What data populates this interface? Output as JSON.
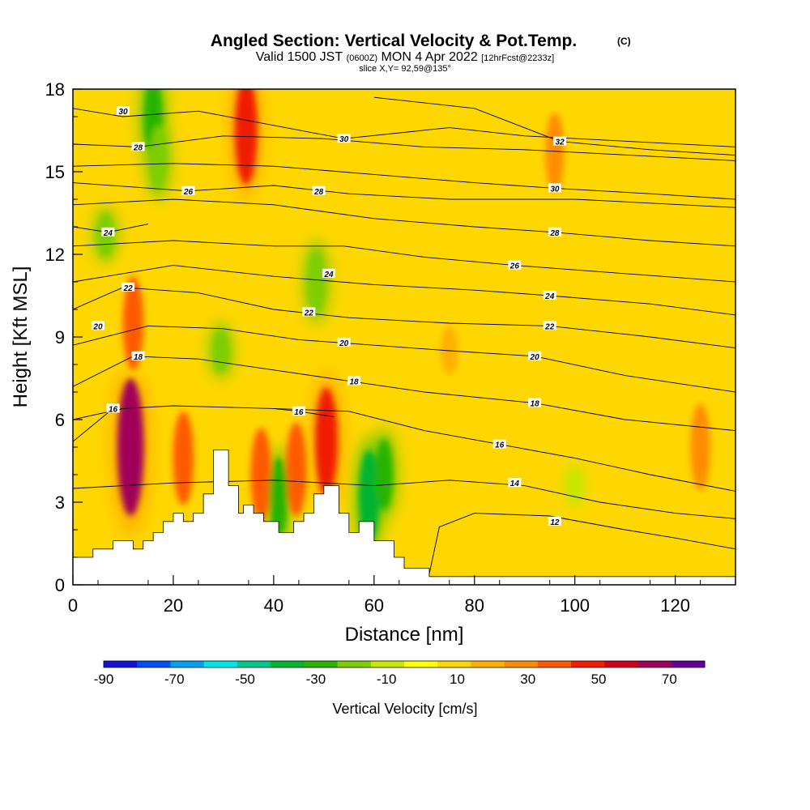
{
  "title": {
    "main": "Angled Section: Vertical Velocity & Pot.Temp.",
    "main_tag": "(C)",
    "valid_a": "Valid 1500 JST",
    "valid_b": "(0600Z)",
    "valid_c": "MON 4 Apr 2022",
    "valid_d": "[12hrFcst@2233z]",
    "slice": "slice X,Y= 92,59@135°"
  },
  "chart_data": {
    "type": "heatmap",
    "subtype": "cross-section: filled contours of vertical velocity with potential temperature contour lines and terrain",
    "xlabel": "Distance [nm]",
    "ylabel": "Height [Kft MSL]",
    "xlim": [
      0,
      132
    ],
    "ylim": [
      0,
      18
    ],
    "xticks": [
      "0",
      "20",
      "40",
      "60",
      "80",
      "100",
      "120"
    ],
    "yticks": [
      "0",
      "3",
      "6",
      "9",
      "12",
      "15",
      "18"
    ],
    "grid": false,
    "colorbar": {
      "label": "Vertical Velocity [cm/s]",
      "min": -90,
      "max": 80,
      "step": 10,
      "tick_labels": [
        "-90",
        "-70",
        "-50",
        "-30",
        "-10",
        "10",
        "30",
        "50",
        "70"
      ],
      "colors": [
        "#1414d2",
        "#0050f0",
        "#00a0f0",
        "#00e6e6",
        "#00c88c",
        "#00b432",
        "#28b400",
        "#7dcd00",
        "#c8e600",
        "#ffff00",
        "#ffd700",
        "#ffaf00",
        "#ff8c00",
        "#ff5a00",
        "#f01e00",
        "#d2001e",
        "#a0005a",
        "#640096"
      ]
    },
    "velocity_features": [
      {
        "x": 11.5,
        "y": 5.0,
        "value": 70
      },
      {
        "x": 12,
        "y": 9.5,
        "value": 40
      },
      {
        "x": 34.5,
        "y": 16.5,
        "value": 50
      },
      {
        "x": 50.5,
        "y": 5.2,
        "value": 50
      },
      {
        "x": 44.5,
        "y": 4.2,
        "value": 40
      },
      {
        "x": 37.5,
        "y": 4.0,
        "value": 40
      },
      {
        "x": 22,
        "y": 4.6,
        "value": 40
      },
      {
        "x": 16,
        "y": 17,
        "value": -30
      },
      {
        "x": 17,
        "y": 15.5,
        "value": -20
      },
      {
        "x": 59,
        "y": 3.2,
        "value": -40
      },
      {
        "x": 62,
        "y": 4.0,
        "value": -25
      },
      {
        "x": 41,
        "y": 3.2,
        "value": -30
      },
      {
        "x": 48.5,
        "y": 11,
        "value": -20
      },
      {
        "x": 6.5,
        "y": 12.7,
        "value": -15
      },
      {
        "x": 29.5,
        "y": 8.5,
        "value": -15
      },
      {
        "x": 118,
        "y": 15.5,
        "value": 15
      },
      {
        "x": 125,
        "y": 5,
        "value": 35
      },
      {
        "x": 96,
        "y": 15.7,
        "value": 30
      },
      {
        "x": 75,
        "y": 8.5,
        "value": 20
      },
      {
        "x": 100,
        "y": 3.6,
        "value": -5
      }
    ],
    "theta_contours": [
      {
        "label": "12",
        "label_pos": [
          96,
          2.3
        ],
        "points": [
          [
            71,
            0.4
          ],
          [
            73,
            2.1
          ],
          [
            80,
            2.6
          ],
          [
            95,
            2.5
          ],
          [
            110,
            2.0
          ],
          [
            120,
            1.7
          ],
          [
            132,
            1.3
          ]
        ]
      },
      {
        "label": "14",
        "label_pos": [
          88,
          3.7
        ],
        "points": [
          [
            0,
            3.5
          ],
          [
            20,
            3.7
          ],
          [
            40,
            3.8
          ],
          [
            60,
            3.6
          ],
          [
            75,
            3.8
          ],
          [
            90,
            3.6
          ],
          [
            105,
            3.0
          ],
          [
            120,
            2.6
          ],
          [
            132,
            2.4
          ]
        ]
      },
      {
        "label": "16",
        "label_pos": [
          85,
          5.1
        ],
        "points": [
          [
            0,
            6.0
          ],
          [
            10,
            6.4
          ],
          [
            20,
            6.5
          ],
          [
            40,
            6.4
          ],
          [
            55,
            6.3
          ],
          [
            70,
            5.6
          ],
          [
            85,
            5.1
          ],
          [
            100,
            4.6
          ],
          [
            115,
            4.0
          ],
          [
            132,
            3.4
          ]
        ]
      },
      {
        "label": "16",
        "label_pos": [
          8,
          6.4
        ],
        "points": [
          [
            0,
            5.2
          ],
          [
            8,
            6.4
          ]
        ]
      },
      {
        "label": "16",
        "label_pos": [
          45,
          6.3
        ],
        "points": [
          [
            40,
            6.4
          ],
          [
            45,
            6.3
          ],
          [
            52,
            6.1
          ]
        ]
      },
      {
        "label": "18",
        "label_pos": [
          92,
          6.6
        ],
        "points": [
          [
            0,
            7.2
          ],
          [
            12,
            8.3
          ],
          [
            25,
            8.2
          ],
          [
            40,
            7.8
          ],
          [
            55,
            7.4
          ],
          [
            70,
            7.0
          ],
          [
            92,
            6.6
          ],
          [
            110,
            6.0
          ],
          [
            132,
            5.6
          ]
        ]
      },
      {
        "label": "18",
        "label_pos": [
          13,
          8.3
        ],
        "points": [
          [
            12,
            8.3
          ],
          [
            13,
            8.3
          ]
        ]
      },
      {
        "label": "18",
        "label_pos": [
          56,
          7.4
        ],
        "points": [
          [
            55,
            7.4
          ],
          [
            56,
            7.4
          ]
        ]
      },
      {
        "label": "20",
        "label_pos": [
          92,
          8.3
        ],
        "points": [
          [
            0,
            8.7
          ],
          [
            15,
            9.4
          ],
          [
            30,
            9.3
          ],
          [
            45,
            8.9
          ],
          [
            60,
            8.7
          ],
          [
            75,
            8.5
          ],
          [
            92,
            8.3
          ],
          [
            110,
            7.6
          ],
          [
            132,
            7.0
          ]
        ]
      },
      {
        "label": "20",
        "label_pos": [
          54,
          8.8
        ],
        "points": [
          [
            54,
            8.8
          ],
          [
            55,
            8.8
          ]
        ]
      },
      {
        "label": "20",
        "label_pos": [
          5,
          9.4
        ],
        "points": [
          [
            4,
            9.4
          ],
          [
            5,
            9.4
          ]
        ]
      },
      {
        "label": "22",
        "label_pos": [
          95,
          9.4
        ],
        "points": [
          [
            0,
            10.0
          ],
          [
            10,
            10.8
          ],
          [
            25,
            10.6
          ],
          [
            40,
            10.0
          ],
          [
            55,
            9.7
          ],
          [
            75,
            9.5
          ],
          [
            95,
            9.4
          ],
          [
            115,
            9.0
          ],
          [
            132,
            8.6
          ]
        ]
      },
      {
        "label": "22",
        "label_pos": [
          47,
          9.9
        ],
        "points": [
          [
            46,
            9.9
          ],
          [
            47,
            9.9
          ]
        ]
      },
      {
        "label": "22",
        "label_pos": [
          11,
          10.8
        ],
        "points": [
          [
            10,
            10.8
          ],
          [
            11,
            10.8
          ]
        ]
      },
      {
        "label": "24",
        "label_pos": [
          95,
          10.5
        ],
        "points": [
          [
            0,
            11.0
          ],
          [
            20,
            11.6
          ],
          [
            40,
            11.2
          ],
          [
            60,
            10.9
          ],
          [
            80,
            10.7
          ],
          [
            95,
            10.5
          ],
          [
            115,
            10.2
          ],
          [
            132,
            9.8
          ]
        ]
      },
      {
        "label": "24",
        "label_pos": [
          51,
          11.3
        ],
        "points": [
          [
            50,
            11.3
          ],
          [
            51,
            11.3
          ]
        ]
      },
      {
        "label": "26",
        "label_pos": [
          88,
          11.6
        ],
        "points": [
          [
            0,
            12.3
          ],
          [
            20,
            12.5
          ],
          [
            40,
            12.3
          ],
          [
            54,
            12.3
          ],
          [
            70,
            11.9
          ],
          [
            88,
            11.6
          ],
          [
            110,
            11.3
          ],
          [
            132,
            11.0
          ]
        ]
      },
      {
        "label": "24",
        "label_pos": [
          7,
          12.8
        ],
        "points": [
          [
            0,
            13.0
          ],
          [
            7,
            12.8
          ],
          [
            15,
            13.1
          ]
        ]
      },
      {
        "label": "28",
        "label_pos": [
          96,
          12.8
        ],
        "points": [
          [
            0,
            13.8
          ],
          [
            20,
            14.0
          ],
          [
            40,
            13.8
          ],
          [
            60,
            13.3
          ],
          [
            80,
            13.0
          ],
          [
            96,
            12.8
          ],
          [
            115,
            12.5
          ],
          [
            132,
            12.3
          ]
        ]
      },
      {
        "label": "28",
        "label_pos": [
          49,
          14.3
        ],
        "points": [
          [
            48,
            14.4
          ],
          [
            49,
            14.3
          ]
        ]
      },
      {
        "label": "26",
        "label_pos": [
          23,
          14.3
        ],
        "points": [
          [
            0,
            14.6
          ],
          [
            23,
            14.3
          ],
          [
            40,
            14.5
          ],
          [
            55,
            14.2
          ],
          [
            75,
            14.0
          ],
          [
            100,
            14.0
          ],
          [
            132,
            13.7
          ]
        ]
      },
      {
        "label": "30",
        "label_pos": [
          96,
          14.4
        ],
        "points": [
          [
            0,
            15.2
          ],
          [
            20,
            15.3
          ],
          [
            40,
            15.2
          ],
          [
            60,
            14.9
          ],
          [
            80,
            14.6
          ],
          [
            96,
            14.4
          ],
          [
            115,
            14.2
          ],
          [
            132,
            14.0
          ]
        ]
      },
      {
        "label": "28",
        "label_pos": [
          13,
          15.9
        ],
        "points": [
          [
            0,
            16.0
          ],
          [
            13,
            15.9
          ],
          [
            30,
            16.3
          ],
          [
            50,
            16.2
          ],
          [
            70,
            15.9
          ],
          [
            90,
            15.8
          ],
          [
            132,
            15.4
          ]
        ]
      },
      {
        "label": "30",
        "label_pos": [
          54,
          16.2
        ],
        "points": [
          [
            0,
            17.3
          ],
          [
            10,
            17.0
          ],
          [
            25,
            17.2
          ],
          [
            54,
            16.2
          ],
          [
            75,
            16.6
          ],
          [
            90,
            16.3
          ],
          [
            132,
            15.9
          ]
        ]
      },
      {
        "label": "30",
        "label_pos": [
          10,
          17.2
        ],
        "points": [
          [
            10,
            17.2
          ],
          [
            11,
            17.2
          ]
        ]
      },
      {
        "label": "32",
        "label_pos": [
          97,
          16.1
        ],
        "points": [
          [
            60,
            17.7
          ],
          [
            80,
            17.3
          ],
          [
            97,
            16.1
          ],
          [
            115,
            15.8
          ],
          [
            132,
            15.6
          ]
        ]
      }
    ],
    "terrain": [
      [
        0,
        1.0
      ],
      [
        4,
        1.0
      ],
      [
        4,
        1.3
      ],
      [
        8,
        1.3
      ],
      [
        8,
        1.6
      ],
      [
        12,
        1.6
      ],
      [
        12,
        1.3
      ],
      [
        14,
        1.3
      ],
      [
        14,
        1.6
      ],
      [
        16,
        1.6
      ],
      [
        16,
        1.9
      ],
      [
        18,
        1.9
      ],
      [
        18,
        2.3
      ],
      [
        20,
        2.3
      ],
      [
        20,
        2.6
      ],
      [
        22,
        2.6
      ],
      [
        22,
        2.3
      ],
      [
        24,
        2.3
      ],
      [
        24,
        2.6
      ],
      [
        26,
        2.6
      ],
      [
        26,
        3.3
      ],
      [
        28,
        3.3
      ],
      [
        28,
        4.9
      ],
      [
        31,
        4.9
      ],
      [
        31,
        3.6
      ],
      [
        33,
        3.6
      ],
      [
        33,
        2.6
      ],
      [
        34,
        2.6
      ],
      [
        34,
        2.9
      ],
      [
        36,
        2.9
      ],
      [
        36,
        2.6
      ],
      [
        38,
        2.6
      ],
      [
        38,
        2.3
      ],
      [
        41,
        2.3
      ],
      [
        41,
        1.9
      ],
      [
        44,
        1.9
      ],
      [
        44,
        2.3
      ],
      [
        46,
        2.3
      ],
      [
        46,
        2.6
      ],
      [
        48,
        2.6
      ],
      [
        48,
        3.3
      ],
      [
        50,
        3.3
      ],
      [
        50,
        3.6
      ],
      [
        53,
        3.6
      ],
      [
        53,
        2.6
      ],
      [
        55,
        2.6
      ],
      [
        55,
        1.9
      ],
      [
        57,
        1.9
      ],
      [
        57,
        2.3
      ],
      [
        60,
        2.3
      ],
      [
        60,
        1.6
      ],
      [
        64,
        1.6
      ],
      [
        64,
        1.0
      ],
      [
        66,
        1.0
      ],
      [
        66,
        0.6
      ],
      [
        71,
        0.6
      ],
      [
        71,
        0.3
      ],
      [
        100,
        0.3
      ],
      [
        132,
        0.3
      ]
    ]
  }
}
